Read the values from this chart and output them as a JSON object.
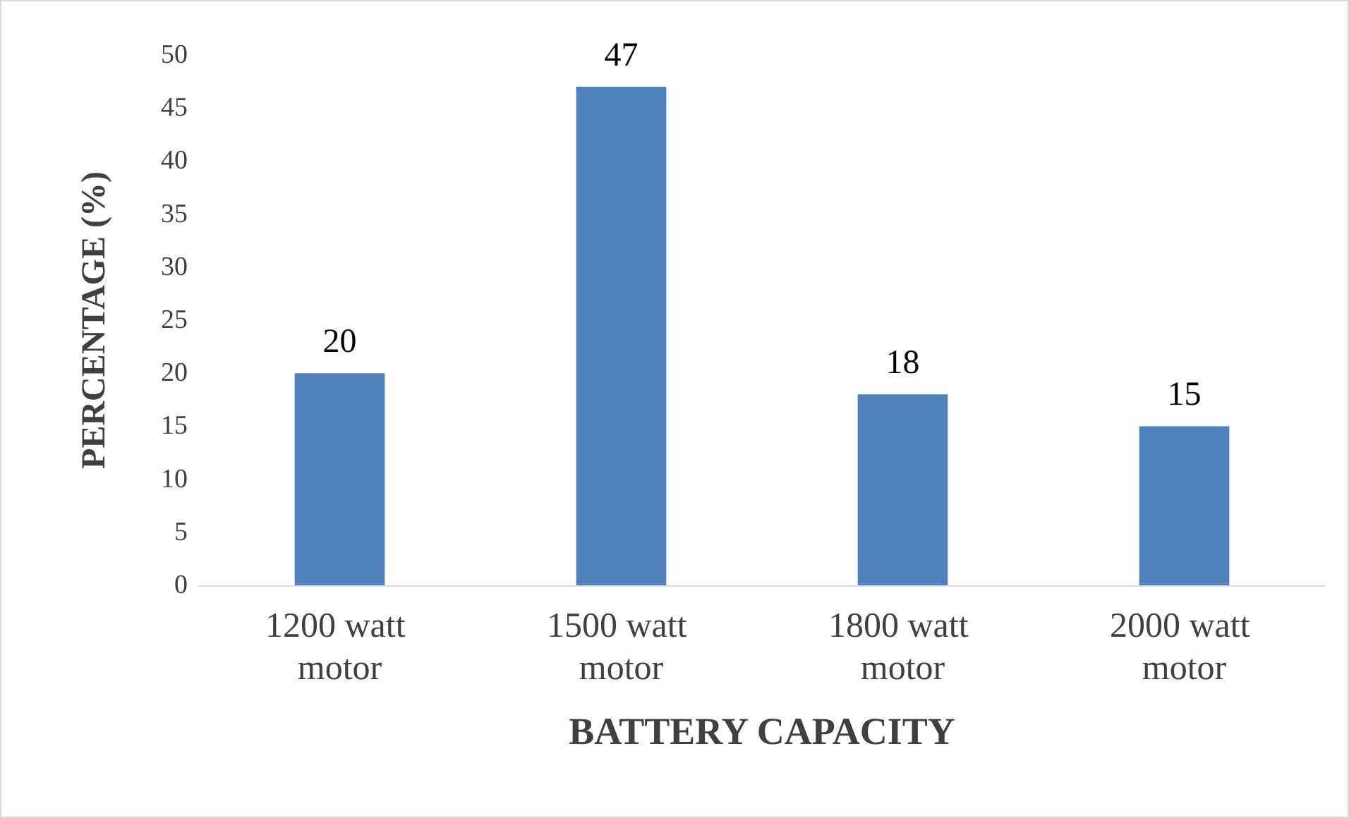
{
  "chart_data": {
    "type": "bar",
    "xlabel": "BATTERY CAPACITY",
    "ylabel": "PERCENTAGE (%)",
    "categories": [
      "1200 watt motor",
      "1500 watt motor",
      "1800 watt motor",
      "2000 watt motor"
    ],
    "values": [
      20,
      47,
      18,
      15
    ],
    "color": "#4f81bd",
    "ylim": [
      0,
      50
    ],
    "yticks": [
      0,
      5,
      10,
      15,
      20,
      25,
      30,
      35,
      40,
      45,
      50
    ],
    "grid": false,
    "data_labels": true
  }
}
